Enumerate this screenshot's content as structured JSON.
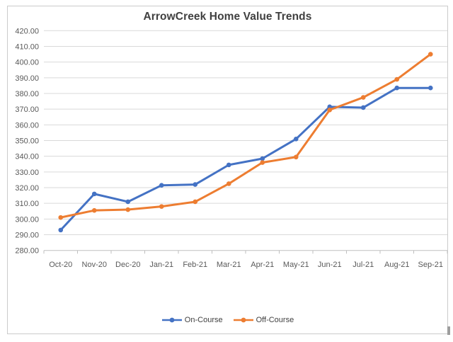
{
  "chart_data": {
    "type": "line",
    "title": "ArrowCreek Home Value Trends",
    "categories": [
      "Oct-20",
      "Nov-20",
      "Dec-20",
      "Jan-21",
      "Feb-21",
      "Mar-21",
      "Apr-21",
      "May-21",
      "Jun-21",
      "Jul-21",
      "Aug-21",
      "Sep-21"
    ],
    "series": [
      {
        "name": "On-Course",
        "color": "#4472C4",
        "values": [
          293.0,
          316.0,
          311.0,
          321.5,
          322.0,
          334.5,
          338.5,
          351.0,
          371.5,
          371.0,
          383.5,
          383.5
        ]
      },
      {
        "name": "Off-Course",
        "color": "#ED7D31",
        "values": [
          301.0,
          305.5,
          306.0,
          308.0,
          311.0,
          322.5,
          336.0,
          339.5,
          369.5,
          377.5,
          389.0,
          405.0
        ]
      }
    ],
    "xlabel": "",
    "ylabel": "",
    "ylim": [
      280,
      420
    ],
    "ytick_step": 10,
    "ytick_format_decimals": 2,
    "grid": true,
    "gridline_color": "#d9d9d9",
    "axis_line_color": "#bfbfbf",
    "tick_label_color": "#595959",
    "legend_position": "bottom"
  }
}
